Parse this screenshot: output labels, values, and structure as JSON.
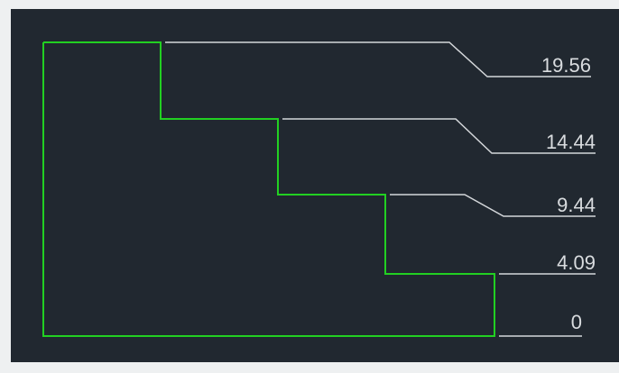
{
  "elevation_labels": [
    "19.56",
    "14.44",
    "9.44",
    "4.09",
    "0"
  ]
}
